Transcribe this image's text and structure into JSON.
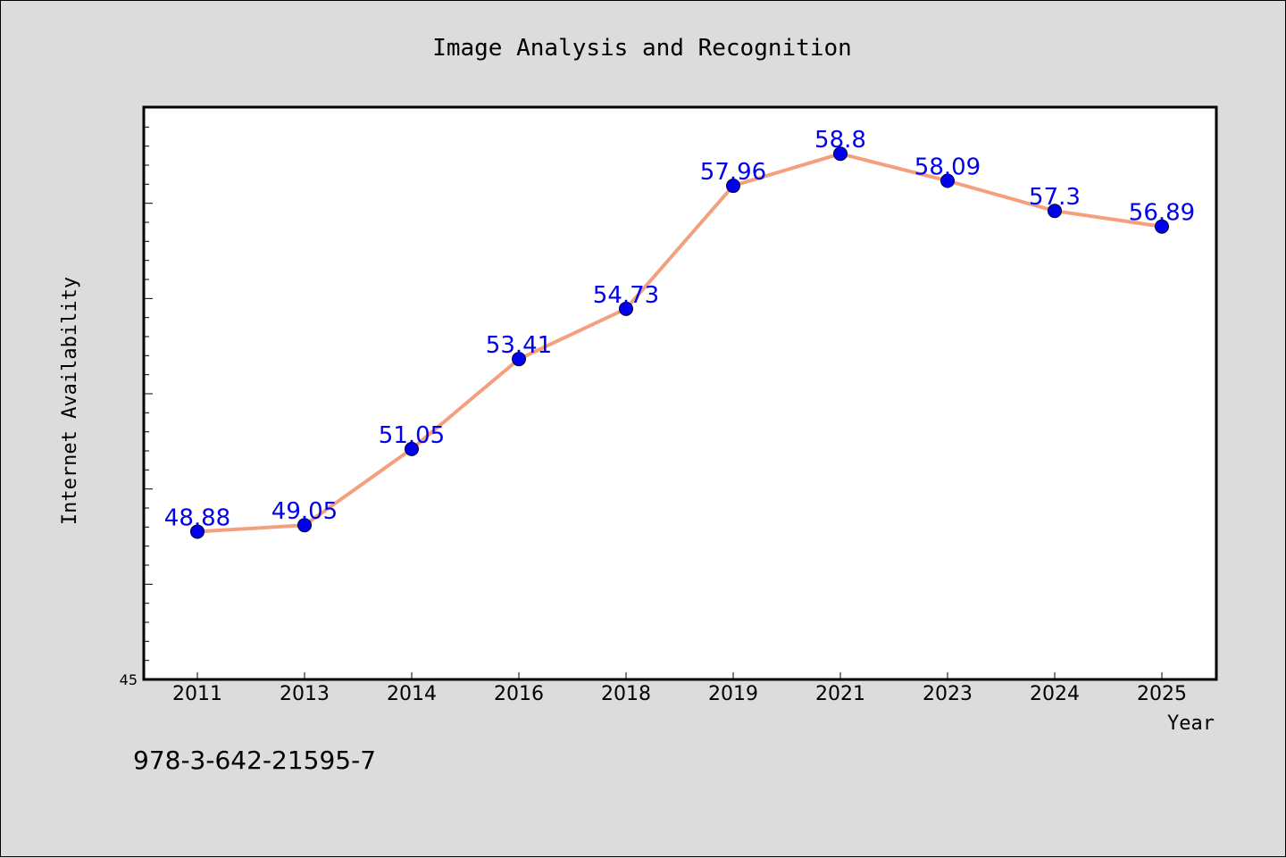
{
  "chart_data": {
    "type": "line",
    "title": "Image Analysis and Recognition",
    "xlabel": "Year",
    "ylabel": "Internet Availability",
    "categories": [
      "2011",
      "2013",
      "2014",
      "2016",
      "2018",
      "2019",
      "2021",
      "2023",
      "2024",
      "2025"
    ],
    "series": [
      {
        "values": [
          48.88,
          49.05,
          51.05,
          53.41,
          54.73,
          57.96,
          58.8,
          58.09,
          57.3,
          56.89
        ],
        "labels": [
          "48.88",
          "49.05",
          "51.05",
          "53.41",
          "54.73",
          "57.96",
          "58.8",
          "58.09",
          "57.3",
          "56.89"
        ]
      }
    ],
    "ylim": [
      45,
      60
    ],
    "y_tick_labels": [
      "45"
    ],
    "grid": false,
    "line_color": "#f4a07f",
    "marker_color": "#0000ee",
    "label_color": "#0000ee"
  },
  "footer": {
    "isbn": "978-3-642-21595-7"
  }
}
